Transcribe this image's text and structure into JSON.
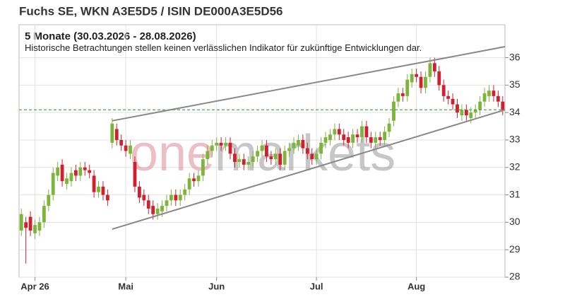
{
  "chart_data": {
    "type": "candlestick",
    "title": "Fuchs SE, WKN A3E5D5 / ISIN DE000A3E5D56",
    "subtitle": "5 Monate (30.03.2026 - 28.08.2026)",
    "note": "Historische Betrachtungen stellen keinen verlässlichen Indikator für zukünftige Entwicklungen dar.",
    "watermark_parts": [
      "one",
      "markets"
    ],
    "categories": [
      null,
      null,
      null,
      "Apr 26",
      null,
      null,
      null,
      null,
      null,
      null,
      null,
      null,
      null,
      null,
      null,
      null,
      null,
      null,
      null,
      null,
      null,
      null,
      null,
      "Mai",
      null,
      null,
      null,
      null,
      null,
      null,
      null,
      null,
      null,
      null,
      null,
      null,
      null,
      null,
      null,
      null,
      null,
      null,
      null,
      "Jun",
      null,
      null,
      null,
      null,
      null,
      null,
      null,
      null,
      null,
      null,
      null,
      null,
      null,
      null,
      null,
      null,
      null,
      null,
      null,
      null,
      null,
      "Jul",
      null,
      null,
      null,
      null,
      null,
      null,
      null,
      null,
      null,
      null,
      null,
      null,
      null,
      null,
      null,
      null,
      null,
      null,
      null,
      null,
      null,
      "Aug",
      null,
      null,
      null,
      null,
      null,
      null,
      null,
      null,
      null,
      null,
      null,
      null,
      null,
      null,
      null,
      null,
      null,
      null,
      null
    ],
    "open": [
      29.7,
      30.0,
      30.2,
      29.6,
      29.7,
      30.0,
      30.6,
      31.0,
      31.7,
      32.1,
      31.4,
      31.5,
      31.9,
      31.7,
      32.0,
      31.9,
      31.7,
      31.1,
      31.3,
      31.0,
      32.9,
      33.4,
      33.0,
      32.8,
      32.5,
      32.2,
      31.3,
      31.0,
      30.8,
      30.6,
      30.3,
      30.4,
      30.6,
      30.8,
      31.0,
      30.8,
      31.0,
      31.2,
      31.6,
      31.5,
      31.7,
      32.3,
      32.6,
      32.8,
      32.9,
      32.8,
      32.9,
      32.5,
      32.2,
      32.3,
      32.1,
      32.2,
      32.4,
      32.6,
      32.8,
      32.4,
      32.3,
      32.5,
      32.1,
      32.6,
      32.7,
      32.8,
      33.0,
      32.7,
      32.5,
      32.3,
      32.5,
      32.9,
      33.0,
      33.2,
      33.4,
      33.2,
      33.1,
      32.9,
      33.2,
      33.1,
      33.5,
      33.1,
      32.9,
      33.1,
      33.0,
      33.3,
      33.7,
      34.4,
      34.7,
      34.6,
      35.1,
      35.4,
      35.3,
      34.9,
      35.3,
      35.8,
      35.5,
      35.0,
      34.6,
      34.5,
      34.3,
      33.9,
      34.1,
      33.8,
      34.0,
      34.1,
      34.4,
      34.6,
      34.8,
      34.6,
      34.4
    ],
    "high": [
      30.5,
      30.2,
      30.4,
      30.1,
      30.2,
      30.8,
      31.2,
      32.0,
      32.2,
      32.3,
      31.8,
      32.0,
      32.1,
      32.2,
      32.2,
      32.1,
      31.9,
      31.5,
      31.5,
      31.2,
      33.8,
      33.6,
      33.2,
      33.0,
      33.0,
      32.4,
      31.5,
      31.2,
      31.0,
      30.8,
      30.7,
      30.8,
      31.0,
      31.2,
      31.2,
      31.2,
      31.4,
      31.8,
      31.8,
      31.9,
      32.5,
      32.8,
      33.0,
      33.1,
      33.1,
      33.1,
      33.1,
      32.7,
      32.5,
      32.5,
      32.4,
      32.6,
      32.8,
      33.0,
      33.0,
      32.6,
      32.7,
      32.7,
      32.8,
      32.9,
      33.1,
      33.2,
      33.2,
      32.9,
      32.7,
      32.7,
      33.1,
      33.3,
      33.4,
      33.6,
      33.6,
      33.4,
      33.3,
      33.4,
      33.4,
      33.7,
      33.7,
      33.3,
      33.3,
      33.3,
      33.5,
      33.8,
      34.6,
      34.9,
      34.9,
      35.4,
      35.6,
      35.6,
      35.5,
      35.5,
      36.0,
      36.0,
      35.7,
      35.2,
      34.8,
      34.7,
      34.5,
      34.3,
      34.3,
      34.2,
      34.3,
      34.6,
      34.9,
      35.0,
      35.0,
      34.8,
      34.6
    ],
    "low": [
      29.5,
      28.5,
      29.5,
      29.4,
      29.5,
      29.8,
      30.4,
      30.8,
      31.5,
      31.3,
      31.2,
      31.3,
      31.5,
      31.5,
      31.7,
      31.6,
      30.9,
      30.9,
      30.8,
      30.6,
      32.7,
      32.8,
      32.6,
      32.4,
      32.3,
      31.1,
      30.7,
      30.6,
      30.3,
      30.1,
      30.1,
      30.2,
      30.4,
      30.6,
      30.6,
      30.6,
      30.8,
      31.0,
      31.3,
      31.3,
      31.5,
      32.1,
      32.4,
      32.6,
      32.6,
      32.6,
      32.3,
      32.0,
      32.0,
      31.9,
      31.9,
      32.0,
      32.2,
      32.4,
      32.2,
      32.1,
      32.1,
      31.9,
      31.9,
      32.4,
      32.5,
      32.6,
      32.5,
      32.3,
      32.1,
      32.1,
      32.3,
      32.7,
      32.8,
      33.0,
      33.0,
      32.8,
      32.7,
      32.7,
      32.9,
      32.9,
      32.9,
      32.7,
      32.7,
      32.8,
      32.8,
      33.1,
      33.5,
      34.2,
      34.4,
      34.4,
      34.9,
      35.1,
      34.7,
      34.7,
      35.1,
      35.3,
      34.8,
      34.4,
      34.3,
      34.1,
      33.8,
      33.7,
      33.7,
      33.6,
      33.8,
      33.9,
      34.2,
      34.4,
      34.4,
      34.2,
      33.9
    ],
    "close": [
      30.3,
      29.8,
      29.7,
      29.9,
      30.0,
      30.6,
      31.0,
      31.8,
      32.0,
      31.5,
      31.6,
      31.8,
      31.7,
      32.0,
      31.9,
      31.8,
      31.1,
      31.3,
      31.0,
      30.8,
      33.6,
      33.0,
      32.8,
      32.6,
      32.8,
      31.3,
      30.9,
      30.8,
      30.5,
      30.3,
      30.5,
      30.6,
      30.8,
      31.0,
      30.8,
      31.0,
      31.2,
      31.6,
      31.5,
      31.7,
      32.3,
      32.6,
      32.8,
      32.9,
      32.8,
      32.9,
      32.5,
      32.2,
      32.3,
      32.1,
      32.2,
      32.4,
      32.6,
      32.8,
      32.4,
      32.3,
      32.5,
      32.1,
      32.6,
      32.7,
      32.9,
      33.0,
      32.7,
      32.5,
      32.3,
      32.5,
      32.9,
      33.1,
      33.2,
      33.4,
      33.2,
      33.0,
      32.9,
      33.2,
      33.1,
      33.5,
      33.1,
      32.9,
      33.1,
      33.0,
      33.3,
      33.6,
      34.4,
      34.7,
      34.6,
      35.2,
      35.4,
      35.3,
      34.9,
      35.3,
      35.8,
      35.5,
      35.0,
      34.6,
      34.5,
      34.3,
      34.0,
      34.1,
      33.9,
      34.0,
      34.1,
      34.4,
      34.7,
      34.8,
      34.6,
      34.4,
      34.1
    ],
    "up_color": "#7cb53a",
    "down_color": "#d0202e",
    "ylim": [
      28,
      37.2
    ],
    "yticks": [
      28,
      29,
      30,
      31,
      32,
      33,
      34,
      35,
      36
    ],
    "grid": true,
    "trend_lines": [
      {
        "from": [
          20,
          33.7
        ],
        "to": [
          106.5,
          36.4
        ],
        "color": "#888888"
      },
      {
        "from": [
          20,
          29.75
        ],
        "to": [
          106.5,
          34.1
        ],
        "color": "#888888"
      }
    ],
    "reference_line": {
      "value": 34.1,
      "color": "#2e8b2e"
    }
  }
}
